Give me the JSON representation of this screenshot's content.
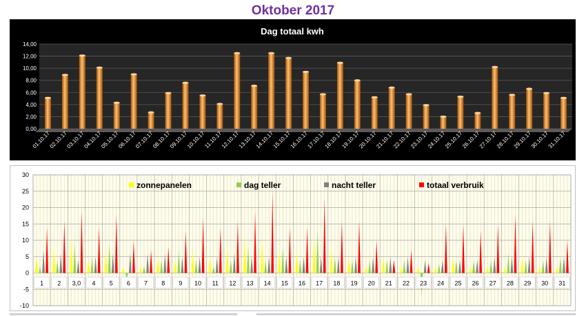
{
  "page": {
    "title": "Oktober 2017"
  },
  "chart_data": [
    {
      "type": "bar",
      "title": "Dag totaal kwh",
      "categories": [
        "01.10.17",
        "02.10.17",
        "03.10.17",
        "04.10.17",
        "05.10.17",
        "06.10.17",
        "07.10.17",
        "08.10.17",
        "09.10.17",
        "10.10.17",
        "11.10.17",
        "12.10.17",
        "13.10.17",
        "14.10.17",
        "15.10.17",
        "16.10.17",
        "17.10.17",
        "18.10.17",
        "19.10.17",
        "20.10.17",
        "21.10.17",
        "22.10.17",
        "23.10.17",
        "24.10.17",
        "25.10.17",
        "26.10.17",
        "27.10.17",
        "28.10.17",
        "29.10.17",
        "30.10.17",
        "31.10.17"
      ],
      "values": [
        5.1,
        8.9,
        12.1,
        10.1,
        4.3,
        9.0,
        2.7,
        5.9,
        7.6,
        5.5,
        4.1,
        12.5,
        7.1,
        12.5,
        11.7,
        9.4,
        5.7,
        10.9,
        8.0,
        5.2,
        6.8,
        5.7,
        3.9,
        2.0,
        5.3,
        2.6,
        10.2,
        5.6,
        6.6,
        5.9,
        5.1
      ],
      "ylim": [
        0,
        14
      ],
      "yticks": [
        "0,00",
        "2,00",
        "4,00",
        "6,00",
        "8,00",
        "10,00",
        "12,00",
        "14,00"
      ],
      "colors": {
        "background": "#000000",
        "plot": "#262626",
        "bar": "#f08a1e",
        "bar_dark": "#a0520a",
        "bar_light": "#ffc070"
      },
      "grid": true
    },
    {
      "type": "area",
      "categories": [
        "1",
        "2",
        "3,0",
        "4",
        "5",
        "6",
        "7",
        "8",
        "9",
        "10",
        "11",
        "12",
        "13",
        "14",
        "15",
        "16",
        "17",
        "18",
        "19",
        "20",
        "21",
        "22",
        "23",
        "24",
        "25",
        "26",
        "27",
        "28",
        "29",
        "30",
        "31"
      ],
      "ylim": [
        -10,
        30
      ],
      "yticks": [
        "-10",
        "-5",
        "0",
        "5",
        "10",
        "15",
        "20",
        "25",
        "30"
      ],
      "legend_position": "top",
      "grid": true,
      "series": [
        {
          "name": "zonnepanelen",
          "color": "#ffff00",
          "values": [
            5,
            8,
            11,
            4,
            7,
            2,
            2,
            5,
            4,
            7,
            5,
            8,
            11,
            11,
            7,
            7,
            11,
            8,
            5,
            2,
            5,
            2,
            2,
            2,
            5,
            2,
            2,
            2,
            5,
            2,
            2
          ]
        },
        {
          "name": "dag teller",
          "color": "#92d050",
          "values": [
            2,
            4,
            9,
            5,
            9,
            -2,
            2,
            4,
            7,
            4,
            2,
            4,
            8,
            4,
            8,
            4,
            13,
            5,
            4,
            4,
            4,
            4,
            -7,
            3,
            4,
            4,
            4,
            6,
            4,
            4,
            5
          ]
        },
        {
          "name": "nacht teller",
          "color": "#808080",
          "values": [
            7,
            6,
            4,
            5,
            6,
            6,
            6,
            6,
            5,
            5,
            5,
            6,
            5,
            5,
            5,
            5,
            5,
            5,
            5,
            5,
            5,
            5,
            4,
            4,
            4,
            4,
            5,
            5,
            5,
            5,
            5
          ]
        },
        {
          "name": "totaal verbruik",
          "color": "#ff0000",
          "values": [
            14,
            16,
            19,
            14,
            18,
            10,
            7,
            8,
            13,
            17,
            14,
            16,
            19,
            25,
            14,
            14,
            23,
            16,
            16,
            10,
            4,
            7,
            3,
            15,
            15,
            13,
            15,
            18,
            16,
            16,
            10
          ]
        }
      ],
      "colors": {
        "plot": "#fffde8",
        "grid_major": "#a6a6a6",
        "grid_minor": "#d9d9d9",
        "label_box": "#ffffff"
      }
    }
  ]
}
